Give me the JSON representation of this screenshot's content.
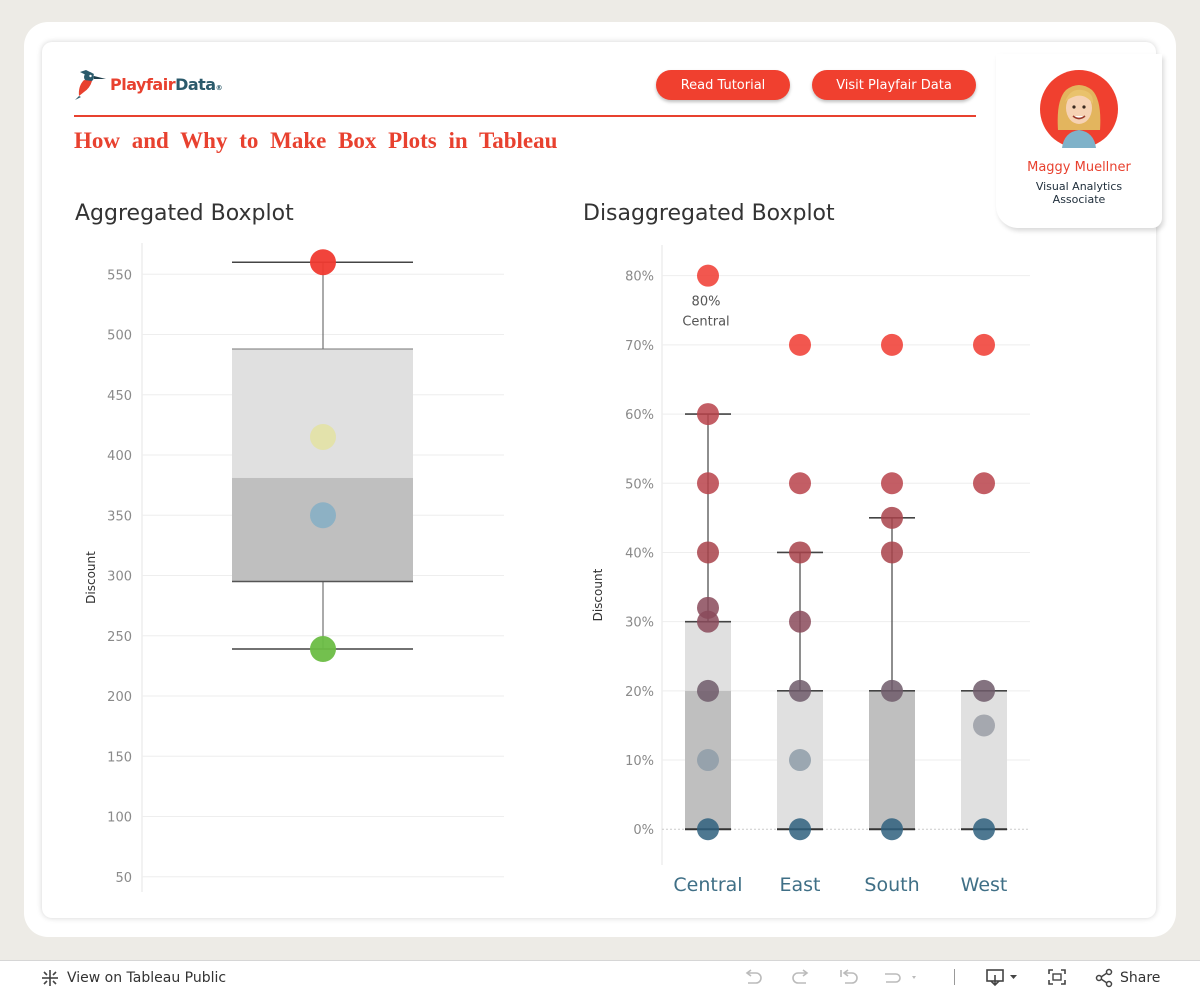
{
  "header": {
    "logo_text_a": "Playfair",
    "logo_text_b": "Data",
    "logo_reg": "®",
    "buttons": {
      "tutorial": "Read Tutorial",
      "visit": "Visit Playfair Data"
    },
    "title": "How and Why to Make Box Plots in Tableau"
  },
  "author": {
    "name": "Maggy Muellner",
    "role": "Visual Analytics Associate"
  },
  "footer": {
    "view_label": "View on Tableau Public",
    "share_label": "Share"
  },
  "colors": {
    "brand_red": "#e8412f",
    "brand_teal": "#2b5a6b"
  },
  "chart_data": [
    {
      "type": "boxplot",
      "title": "Aggregated Boxplot",
      "ylabel": "Discount",
      "ylim": [
        44,
        566
      ],
      "yticks": [
        50,
        100,
        150,
        200,
        250,
        300,
        350,
        400,
        450,
        500,
        550
      ],
      "box": {
        "whisker_low": 239,
        "q1": 295,
        "median": 381,
        "q3": 488,
        "whisker_high": 560
      },
      "points": [
        {
          "value": 560,
          "color": "#f03a30"
        },
        {
          "value": 415,
          "color": "#e3e2a8"
        },
        {
          "value": 350,
          "color": "#8ab0c4"
        },
        {
          "value": 239,
          "color": "#6cbd45"
        }
      ],
      "grid": true
    },
    {
      "type": "boxplot",
      "title": "Disaggregated Boxplot",
      "ylabel": "Discount",
      "ylim": [
        -3,
        84
      ],
      "yticks": [
        0,
        10,
        20,
        30,
        40,
        50,
        60,
        70,
        80
      ],
      "ytick_suffix": "%",
      "categories": [
        "Central",
        "East",
        "South",
        "West"
      ],
      "boxes": [
        {
          "whisker_low": 0,
          "q1": 0,
          "median": 20,
          "q3": 30,
          "whisker_high": 60
        },
        {
          "whisker_low": 0,
          "q1": 0,
          "median": 20,
          "q3": 20,
          "whisker_high": 40
        },
        {
          "whisker_low": 0,
          "q1": 0,
          "median": 20,
          "q3": 20,
          "whisker_high": 45
        },
        {
          "whisker_low": 0,
          "q1": 0,
          "median": 20,
          "q3": 20,
          "whisker_high": 20
        }
      ],
      "points": [
        [
          0,
          10,
          20,
          30,
          32,
          40,
          50,
          60,
          80
        ],
        [
          0,
          10,
          20,
          30,
          40,
          50,
          70
        ],
        [
          0,
          20,
          40,
          45,
          50,
          70
        ],
        [
          0,
          15,
          20,
          50,
          70
        ]
      ],
      "annotation": {
        "category": "Central",
        "value": 80,
        "label_value": "80%",
        "label_category": "Central"
      },
      "grid": true
    }
  ]
}
